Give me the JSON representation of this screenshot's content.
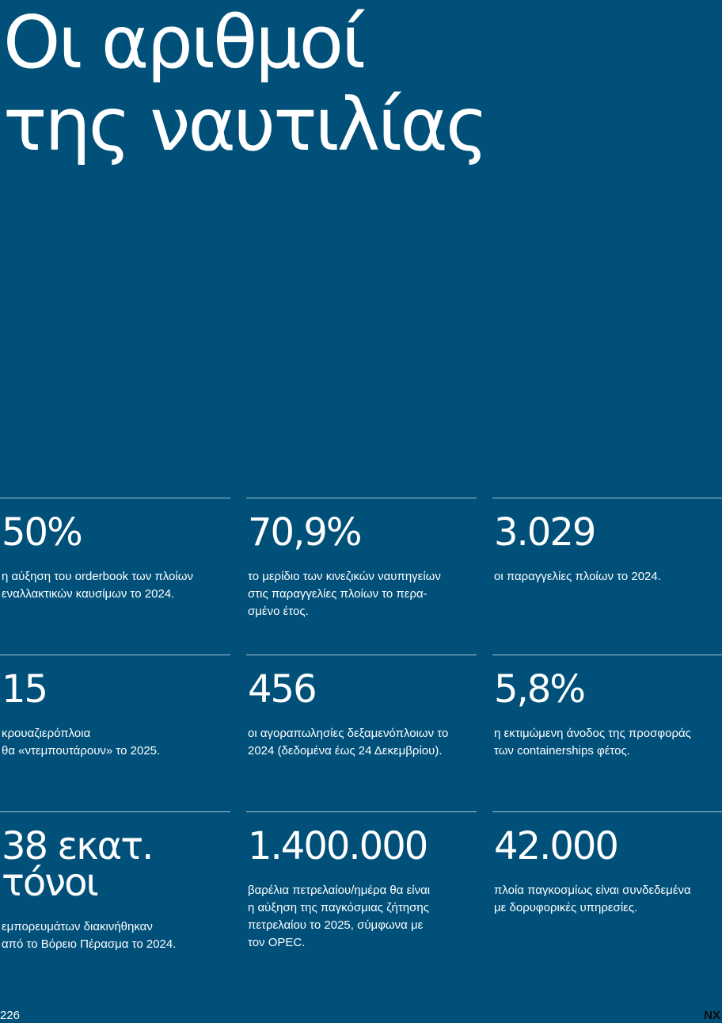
{
  "title": {
    "line1": "Οι αριθμοί",
    "line2": "της ναυτιλίας"
  },
  "stats": [
    {
      "value": "50%",
      "desc": "η αύξηση του orderbook των πλοίων\nεναλλακτικών καυσίμων το 2024."
    },
    {
      "value": "70,9%",
      "desc": "το μερίδιο των κινεζικών ναυπηγείων\nστις παραγγελίες πλοίων το περα-\nσμένο έτος."
    },
    {
      "value": "3.029",
      "desc": "οι παραγγελίες πλοίων το 2024."
    },
    {
      "value": "15",
      "desc": "κρουαζιερόπλοια\nθα «ντεμπουτάρουν» το 2025."
    },
    {
      "value": "456",
      "desc": "οι αγοραπωλησίες δεξαμενόπλοιων το\n2024 (δεδομένα έως 24 Δεκεμβρίου)."
    },
    {
      "value": "5,8%",
      "desc": "η εκτιμώμενη άνοδος της προσφοράς\nτων containerships φέτος."
    },
    {
      "value": "38 εκατ.\nτόνοι",
      "desc": "εμπορευμάτων διακινήθηκαν\nαπό το Βόρειο Πέρασμα το 2024."
    },
    {
      "value": "1.400.000",
      "desc": "βαρέλια πετρελαίου/ημέρα θα είναι\nη αύξηση της παγκόσμιας ζήτησης\nπετρελαίου το 2025, σύμφωνα με\nτον OPEC."
    },
    {
      "value": "42.000",
      "desc": "πλοία παγκοσμίως είναι συνδεδεμένα\nμε δορυφορικές υπηρεσίες."
    }
  ],
  "footer": {
    "page_number": "226",
    "brand": "NX"
  }
}
